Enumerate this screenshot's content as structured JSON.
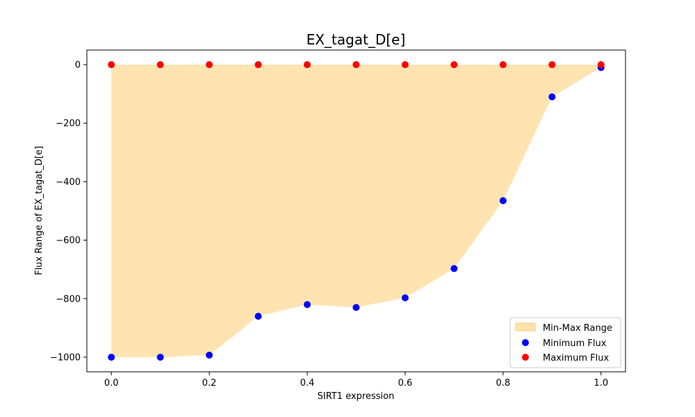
{
  "chart_data": {
    "type": "scatter",
    "title": "EX_tagat_D[e]",
    "xlabel": "SIRT1 expression",
    "ylabel": "Flux Range of EX_tagat_D[e]",
    "x": [
      0.0,
      0.1,
      0.2,
      0.3,
      0.4,
      0.5,
      0.6,
      0.7,
      0.8,
      0.9,
      1.0
    ],
    "series": [
      {
        "name": "Minimum Flux",
        "color": "#0000ff",
        "values": [
          -1000,
          -1000,
          -993,
          -860,
          -820,
          -830,
          -797,
          -697,
          -465,
          -110,
          -10
        ]
      },
      {
        "name": "Maximum Flux",
        "color": "#ff0000",
        "values": [
          0,
          0,
          0,
          0,
          0,
          0,
          0,
          0,
          0,
          0,
          0
        ]
      }
    ],
    "fill": {
      "name": "Min-Max Range",
      "color": "#ffa500",
      "opacity": 0.3
    },
    "xlim": [
      -0.05,
      1.05
    ],
    "ylim": [
      -1050,
      50
    ],
    "xticks": [
      0.0,
      0.2,
      0.4,
      0.6,
      0.8,
      1.0
    ],
    "xtick_labels": [
      "0.0",
      "0.2",
      "0.4",
      "0.6",
      "0.8",
      "1.0"
    ],
    "yticks": [
      -1000,
      -800,
      -600,
      -400,
      -200,
      0
    ],
    "ytick_labels": [
      "−1000",
      "−800",
      "−600",
      "−400",
      "−200",
      "0"
    ],
    "grid": false,
    "legend": "lower right"
  }
}
